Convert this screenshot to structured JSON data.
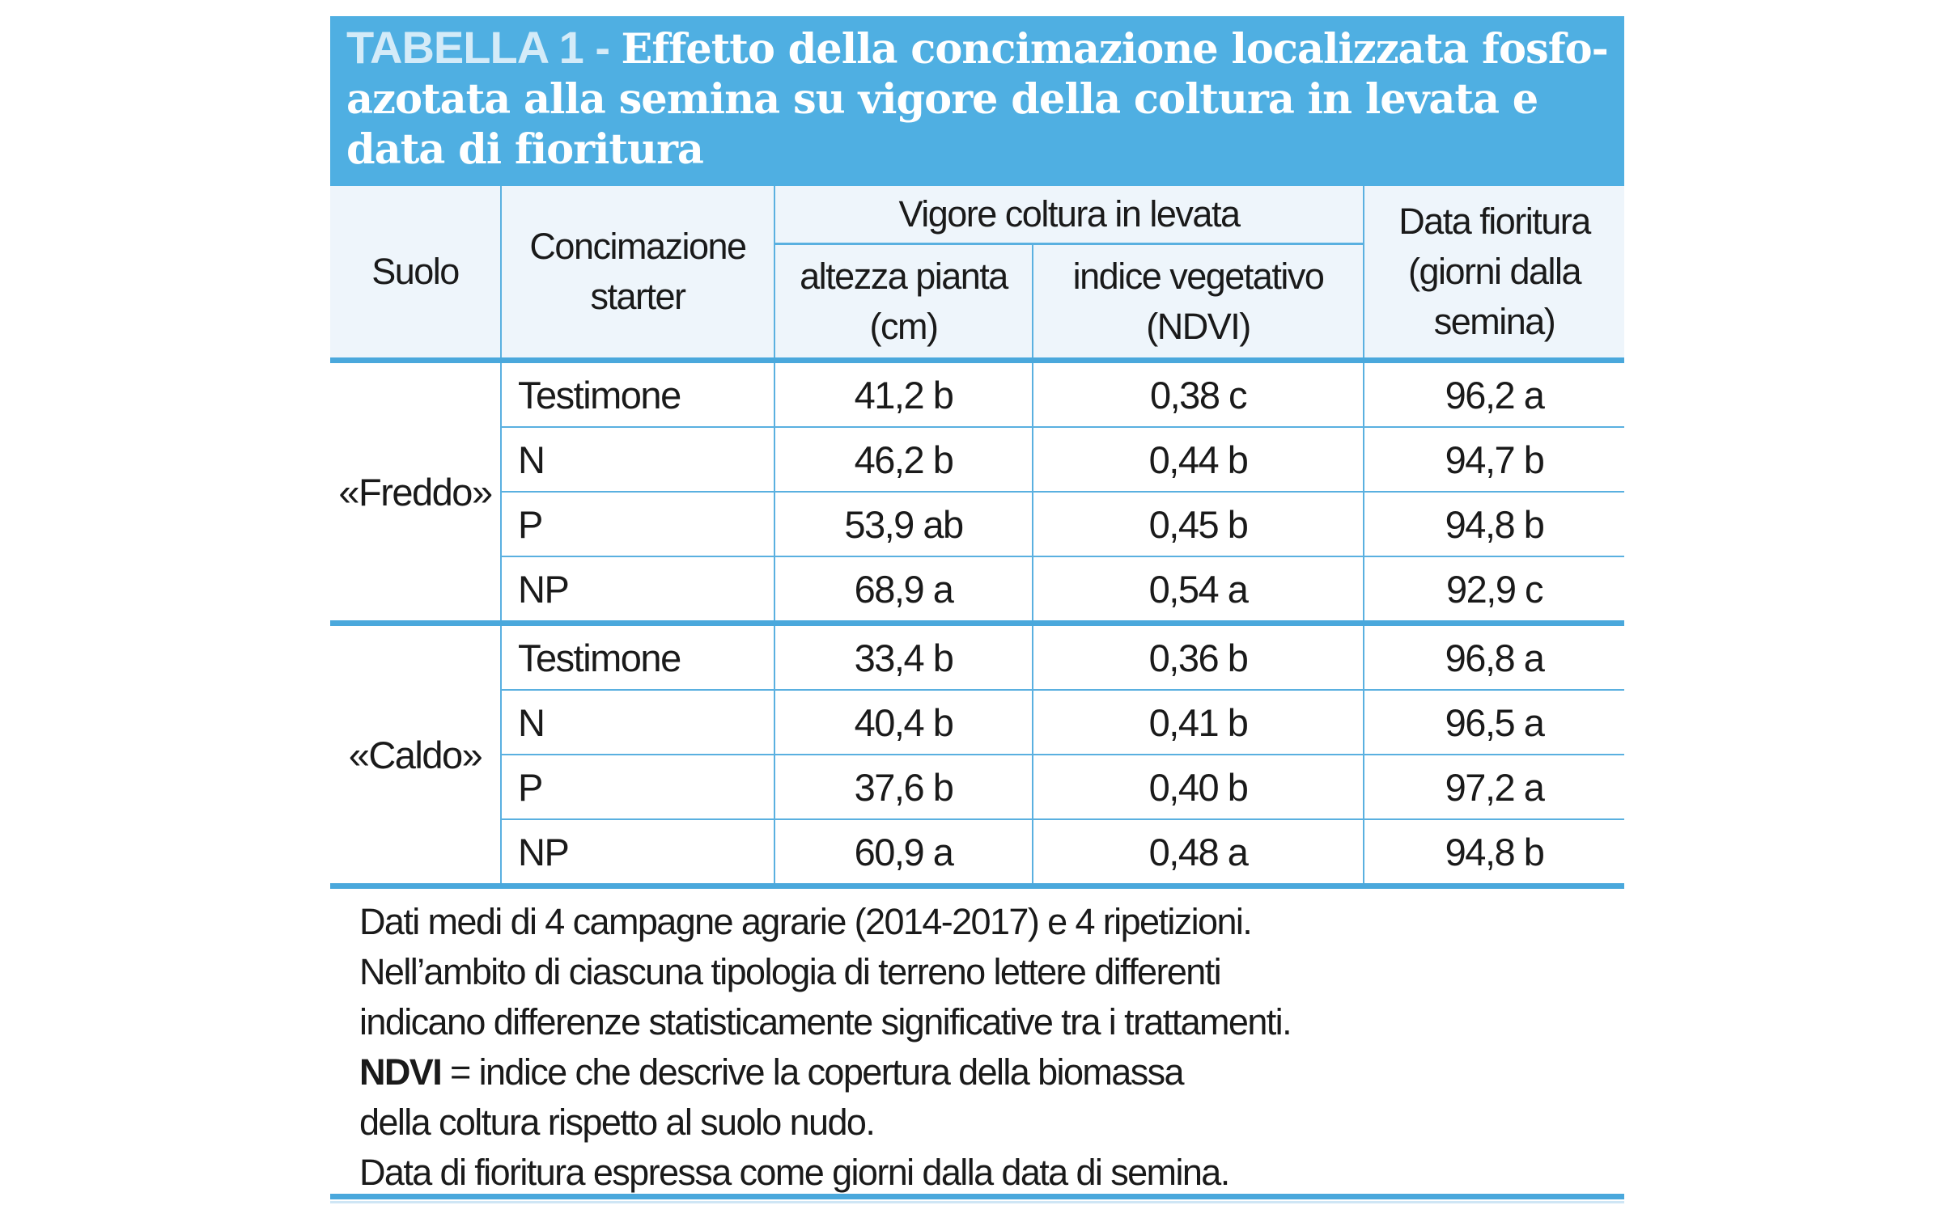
{
  "title": {
    "label": "TABELLA 1 - ",
    "text": "Effetto della concimazione localizzata fosfo-azotata alla semina su vigore della coltura in levata e data di fioritura"
  },
  "headers": {
    "suolo": "Suolo",
    "concimazione": "Concimazione starter",
    "vigore": "Vigore coltura in levata",
    "altezza": "altezza pianta (cm)",
    "indice": "indice vegetativo (NDVI)",
    "fioritura": "Data fioritura (giorni dalla semina)"
  },
  "groups": [
    {
      "soil": "«Freddo»",
      "rows": [
        {
          "treatment": "Testimone",
          "altezza": "41,2 b",
          "ndvi": "0,38 c",
          "fioritura": "96,2 a"
        },
        {
          "treatment": "N",
          "altezza": "46,2 b",
          "ndvi": "0,44 b",
          "fioritura": "94,7 b"
        },
        {
          "treatment": "P",
          "altezza": "53,9 ab",
          "ndvi": "0,45 b",
          "fioritura": "94,8 b"
        },
        {
          "treatment": "NP",
          "altezza": "68,9 a",
          "ndvi": "0,54 a",
          "fioritura": "92,9 c"
        }
      ]
    },
    {
      "soil": "«Caldo»",
      "rows": [
        {
          "treatment": "Testimone",
          "altezza": "33,4 b",
          "ndvi": "0,36 b",
          "fioritura": "96,8 a"
        },
        {
          "treatment": "N",
          "altezza": "40,4 b",
          "ndvi": "0,41 b",
          "fioritura": "96,5 a"
        },
        {
          "treatment": "P",
          "altezza": "37,6 b",
          "ndvi": "0,40 b",
          "fioritura": "97,2 a"
        },
        {
          "treatment": "NP",
          "altezza": "60,9 a",
          "ndvi": "0,48 a",
          "fioritura": "94,8 b"
        }
      ]
    }
  ],
  "notes": {
    "line1": "Dati medi di 4 campagne agrarie (2014-2017) e 4 ripetizioni.",
    "line2": "Nell’ambito di ciascuna tipologia di terreno lettere differenti",
    "line3": "indicano differenze statisticamente significative tra i trattamenti.",
    "ndvi_term": "NDVI",
    "line4": " = indice che descrive la copertura della biomassa",
    "line5": "della coltura rispetto al suolo nudo.",
    "line6": "Data di fioritura espressa come giorni dalla data di semina."
  },
  "colors": {
    "accent": "#4fafe2",
    "header_bg": "#eef5fb"
  }
}
